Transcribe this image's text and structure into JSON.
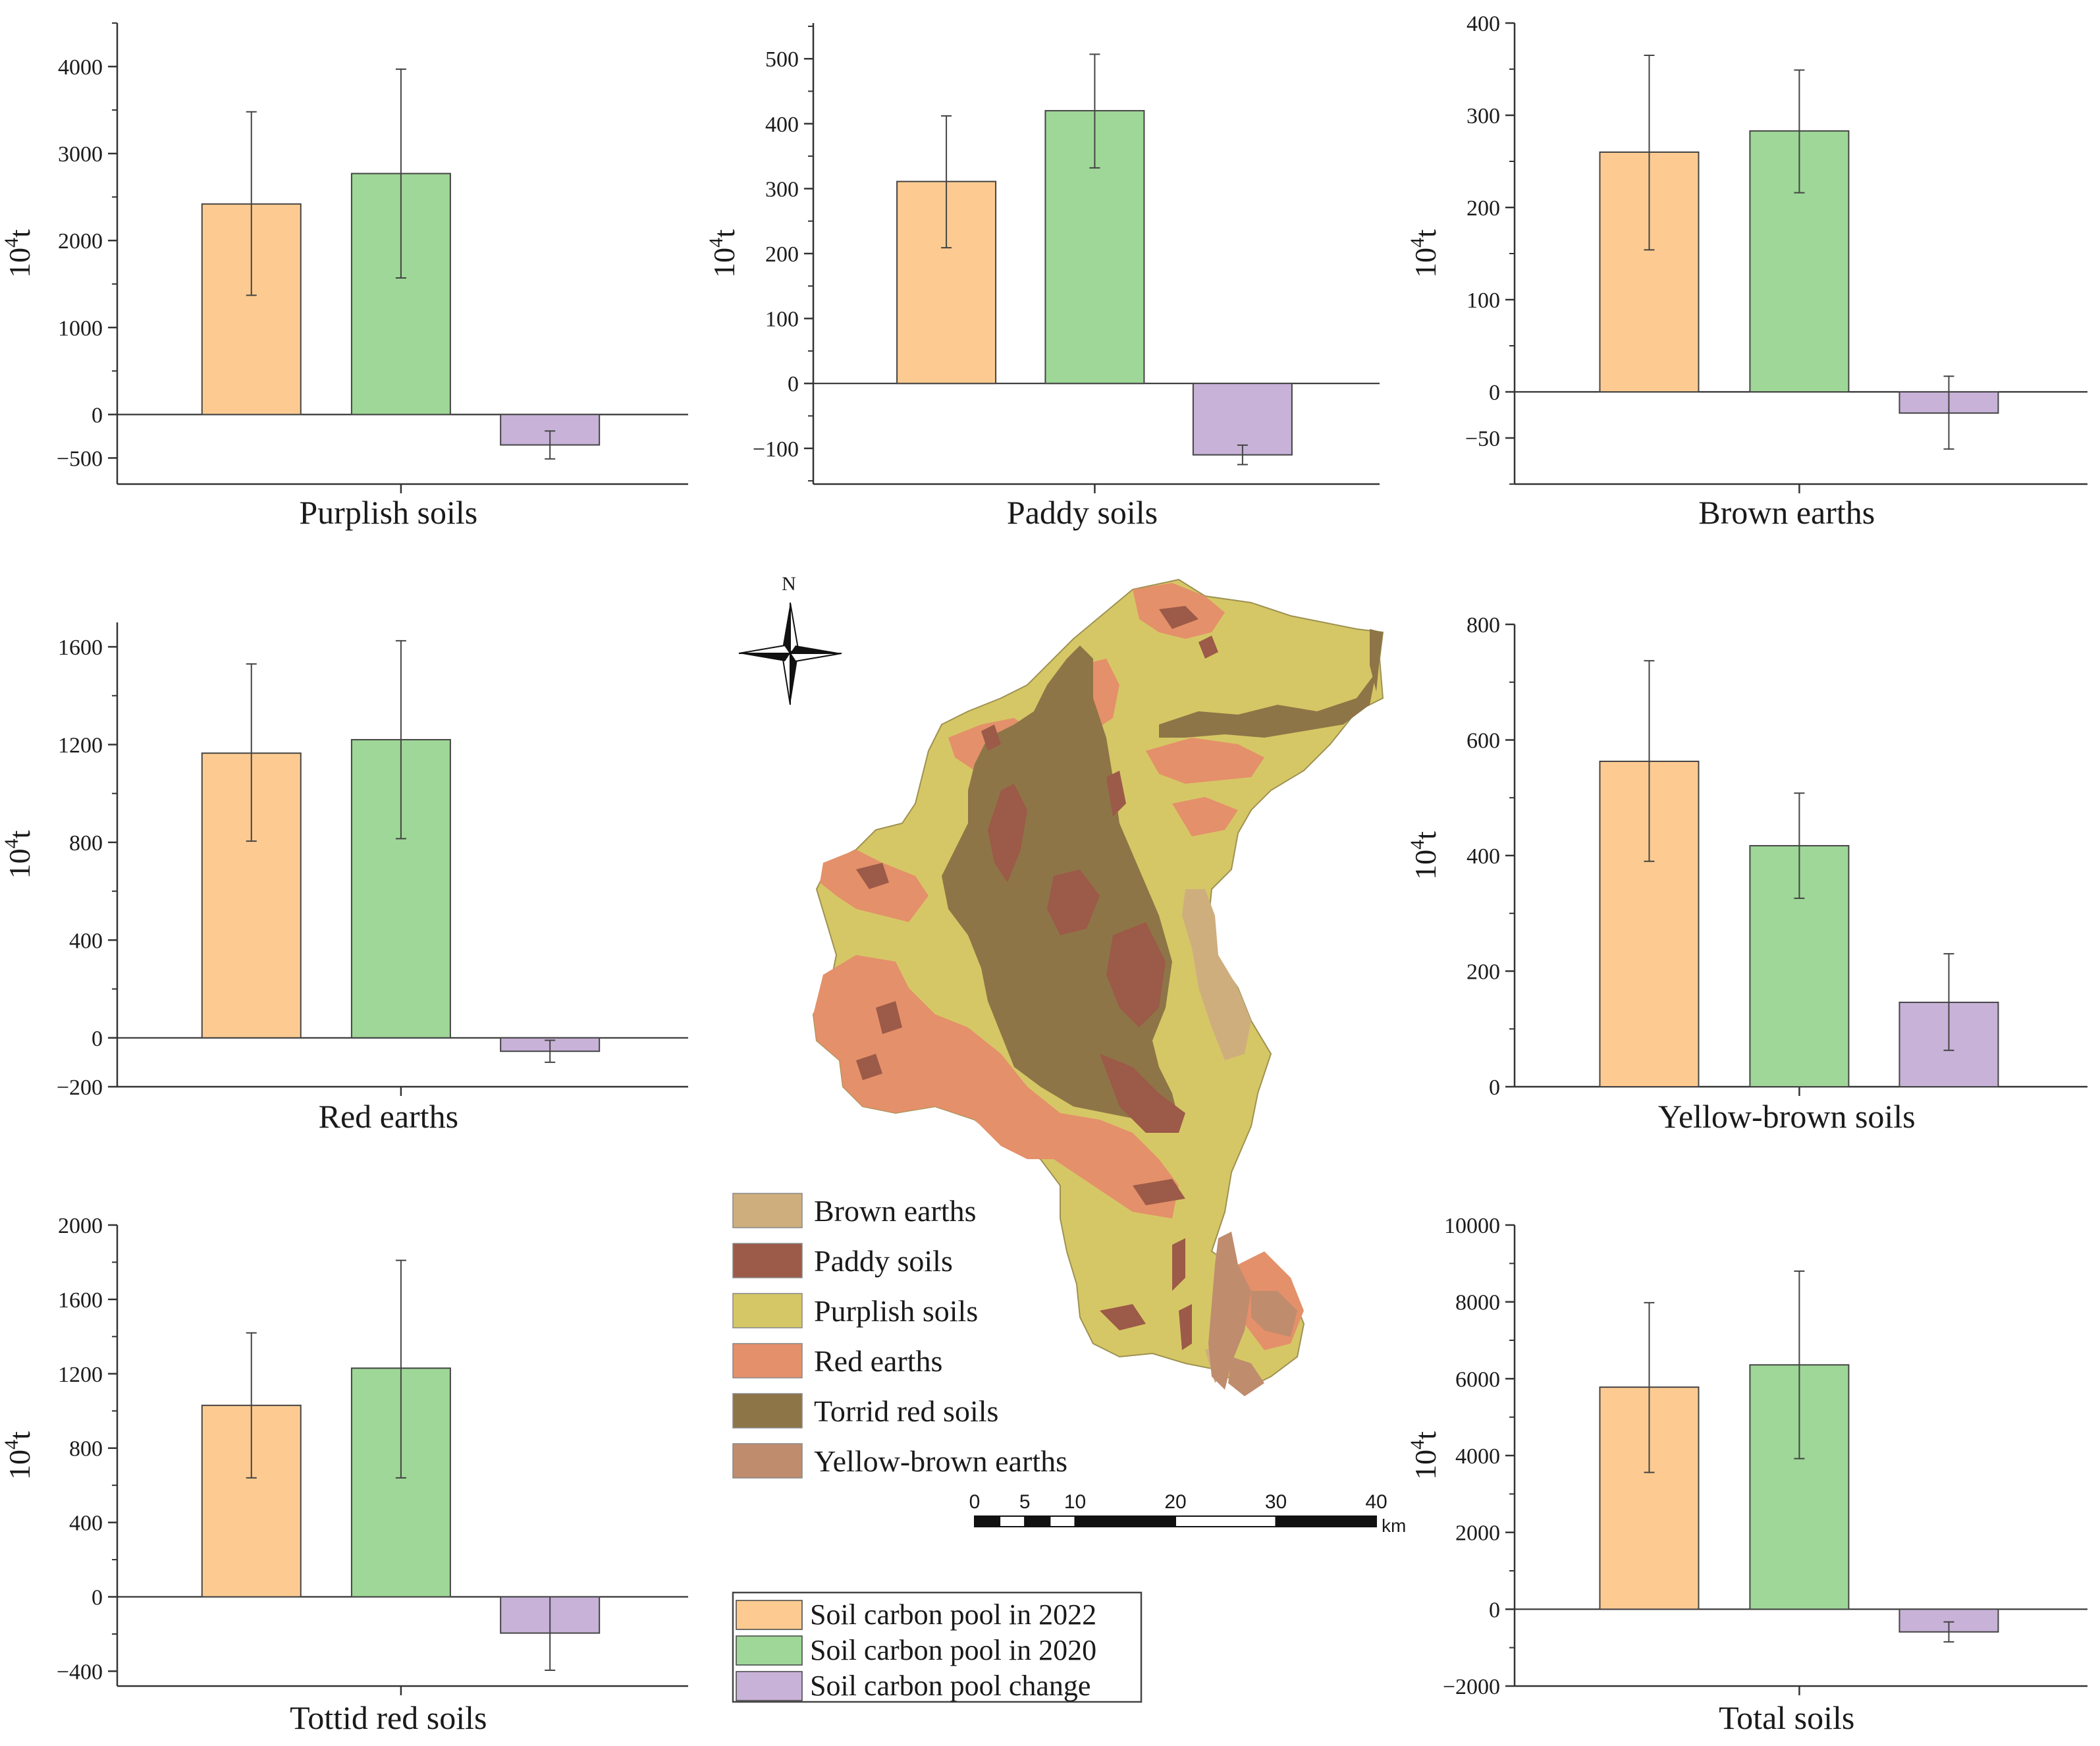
{
  "figure": {
    "legend": {
      "items": [
        {
          "label": "Soil carbon pool in 2022",
          "color": "#FDCB91"
        },
        {
          "label": "Soil carbon pool in 2020",
          "color": "#9ED797"
        },
        {
          "label": "Soil carbon pool change",
          "color": "#C8B2D8"
        }
      ]
    },
    "map": {
      "north_label": "N",
      "legend": [
        {
          "label": "Brown earths",
          "color": "#CFAE7E"
        },
        {
          "label": "Paddy soils",
          "color": "#9C5A48"
        },
        {
          "label": "Purplish soils",
          "color": "#D6C766"
        },
        {
          "label": "Red earths",
          "color": "#E4906A"
        },
        {
          "label": "Torrid red soils",
          "color": "#8E7547"
        },
        {
          "label": "Yellow-brown earths",
          "color": "#BF8C6E"
        }
      ],
      "scale": {
        "ticks": [
          "0",
          "5",
          "10",
          "20",
          "30",
          "40"
        ],
        "unit": "km"
      }
    }
  },
  "chart_data": [
    {
      "type": "bar",
      "title": "Purplish soils",
      "ylabel_base": "10",
      "ylabel_exp": "4",
      "ylabel_unit": "t",
      "ylim": [
        -800,
        4500
      ],
      "yticks": [
        -500,
        0,
        1000,
        2000,
        3000,
        4000
      ],
      "ytick_labels": [
        "−500",
        "0",
        "1000",
        "2000",
        "3000",
        "4000"
      ],
      "series": [
        {
          "name": "Soil carbon pool in 2022",
          "value": 2420,
          "err_low": 1370,
          "err_high": 3480
        },
        {
          "name": "Soil carbon pool in 2020",
          "value": 2770,
          "err_low": 1570,
          "err_high": 3970
        },
        {
          "name": "Soil carbon pool change",
          "value": -350,
          "err_low": -510,
          "err_high": -190
        }
      ]
    },
    {
      "type": "bar",
      "title": "Paddy soils",
      "ylabel_base": "10",
      "ylabel_exp": "4",
      "ylabel_unit": "t",
      "ylim": [
        -155,
        555
      ],
      "yticks": [
        -100,
        0,
        100,
        200,
        300,
        400,
        500
      ],
      "ytick_labels": [
        "−100",
        "0",
        "100",
        "200",
        "300",
        "400",
        "500"
      ],
      "series": [
        {
          "name": "Soil carbon pool in 2022",
          "value": 311,
          "err_low": 209,
          "err_high": 412
        },
        {
          "name": "Soil carbon pool in 2020",
          "value": 420,
          "err_low": 332,
          "err_high": 507
        },
        {
          "name": "Soil carbon pool change",
          "value": -110,
          "err_low": -125,
          "err_high": -95
        }
      ]
    },
    {
      "type": "bar",
      "title": "Brown earths",
      "ylabel_base": "10",
      "ylabel_exp": "4",
      "ylabel_unit": "t",
      "ylim": [
        -100,
        400
      ],
      "yticks": [
        -50,
        0,
        100,
        200,
        300,
        400
      ],
      "ytick_labels": [
        "−50",
        "0",
        "100",
        "200",
        "300",
        "400"
      ],
      "series": [
        {
          "name": "Soil carbon pool in 2022",
          "value": 260,
          "err_low": 154,
          "err_high": 365
        },
        {
          "name": "Soil carbon pool in 2020",
          "value": 283,
          "err_low": 216,
          "err_high": 349
        },
        {
          "name": "Soil carbon pool change",
          "value": -23,
          "err_low": -62,
          "err_high": 17
        }
      ]
    },
    {
      "type": "bar",
      "title": "Red earths",
      "ylabel_base": "10",
      "ylabel_exp": "4",
      "ylabel_unit": "t",
      "ylim": [
        -200,
        1700
      ],
      "yticks": [
        -200,
        0,
        400,
        800,
        1200,
        1600
      ],
      "ytick_labels": [
        "−200",
        "0",
        "400",
        "800",
        "1200",
        "1600"
      ],
      "series": [
        {
          "name": "Soil carbon pool in 2022",
          "value": 1165,
          "err_low": 805,
          "err_high": 1530
        },
        {
          "name": "Soil carbon pool in 2020",
          "value": 1220,
          "err_low": 815,
          "err_high": 1625
        },
        {
          "name": "Soil carbon pool change",
          "value": -55,
          "err_low": -100,
          "err_high": -10
        }
      ]
    },
    {
      "type": "bar",
      "title": "Yellow-brown soils",
      "ylabel_base": "10",
      "ylabel_exp": "4",
      "ylabel_unit": "t",
      "ylim": [
        0,
        800
      ],
      "yticks": [
        0,
        200,
        400,
        600,
        800
      ],
      "ytick_labels": [
        "0",
        "200",
        "400",
        "600",
        "800"
      ],
      "series": [
        {
          "name": "Soil carbon pool in 2022",
          "value": 563,
          "err_low": 390,
          "err_high": 737
        },
        {
          "name": "Soil carbon pool in 2020",
          "value": 417,
          "err_low": 326,
          "err_high": 508
        },
        {
          "name": "Soil carbon pool change",
          "value": 146,
          "err_low": 63,
          "err_high": 230
        }
      ]
    },
    {
      "type": "bar",
      "title": "Tottid red soils",
      "ylabel_base": "10",
      "ylabel_exp": "4",
      "ylabel_unit": "t",
      "ylim": [
        -480,
        2000
      ],
      "yticks": [
        -400,
        0,
        400,
        800,
        1200,
        1600,
        2000
      ],
      "ytick_labels": [
        "−400",
        "0",
        "400",
        "800",
        "1200",
        "1600",
        "2000"
      ],
      "series": [
        {
          "name": "Soil carbon pool in 2022",
          "value": 1030,
          "err_low": 640,
          "err_high": 1420
        },
        {
          "name": "Soil carbon pool in 2020",
          "value": 1230,
          "err_low": 640,
          "err_high": 1810
        },
        {
          "name": "Soil carbon pool change",
          "value": -195,
          "err_low": -395,
          "err_high": 0
        }
      ]
    },
    {
      "type": "bar",
      "title": "Total soils",
      "ylabel_base": "10",
      "ylabel_exp": "4",
      "ylabel_unit": "t",
      "ylim": [
        -2000,
        10000
      ],
      "yticks": [
        -2000,
        0,
        2000,
        4000,
        6000,
        8000,
        10000
      ],
      "ytick_labels": [
        "−2000",
        "0",
        "2000",
        "4000",
        "6000",
        "8000",
        "10000"
      ],
      "series": [
        {
          "name": "Soil carbon pool in 2022",
          "value": 5780,
          "err_low": 3560,
          "err_high": 7980
        },
        {
          "name": "Soil carbon pool in 2020",
          "value": 6360,
          "err_low": 3920,
          "err_high": 8800
        },
        {
          "name": "Soil carbon pool change",
          "value": -590,
          "err_low": -850,
          "err_high": -330
        }
      ]
    }
  ]
}
